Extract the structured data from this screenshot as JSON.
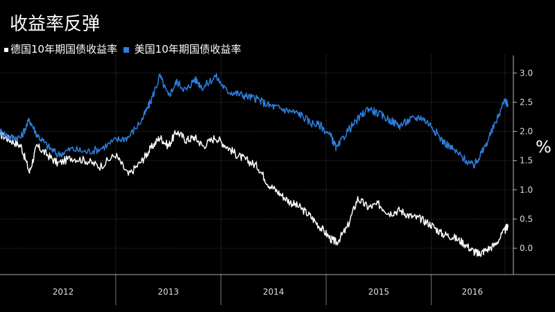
{
  "chart_data": {
    "type": "line",
    "title": "收益率反弹",
    "ylabel": "%",
    "ylim": [
      -0.45,
      3.3
    ],
    "yticks": [
      0.0,
      0.5,
      1.0,
      1.5,
      2.0,
      2.5,
      3.0
    ],
    "ytick_labels": [
      "0.0",
      "0.5",
      "1.0",
      "1.5",
      "2.0",
      "2.5",
      "3.0"
    ],
    "xlim": [
      2011.9,
      2016.78
    ],
    "year_labels": [
      "2012",
      "2013",
      "2014",
      "2015",
      "2016"
    ],
    "year_boundaries": [
      2013.0,
      2014.0,
      2015.0,
      2016.0
    ],
    "grid": true,
    "legend_position": "top-left",
    "series": [
      {
        "name": "德国10年期国债收益率",
        "color": "#ffffff",
        "x": [
          2011.9,
          2012.0,
          2012.1,
          2012.18,
          2012.25,
          2012.35,
          2012.45,
          2012.58,
          2012.72,
          2012.85,
          2013.0,
          2013.12,
          2013.25,
          2013.33,
          2013.42,
          2013.5,
          2013.58,
          2013.67,
          2013.75,
          2013.83,
          2013.95,
          2014.05,
          2014.15,
          2014.25,
          2014.35,
          2014.45,
          2014.55,
          2014.65,
          2014.75,
          2014.85,
          2014.95,
          2015.05,
          2015.1,
          2015.2,
          2015.3,
          2015.4,
          2015.5,
          2015.6,
          2015.7,
          2015.8,
          2015.9,
          2016.0,
          2016.1,
          2016.2,
          2016.3,
          2016.4,
          2016.45,
          2016.5,
          2016.6,
          2016.7,
          2016.73
        ],
        "y": [
          1.95,
          1.85,
          1.75,
          1.3,
          1.75,
          1.6,
          1.45,
          1.55,
          1.5,
          1.4,
          1.6,
          1.25,
          1.5,
          1.7,
          1.9,
          1.75,
          2.0,
          1.85,
          1.9,
          1.75,
          1.9,
          1.75,
          1.6,
          1.5,
          1.4,
          1.1,
          0.95,
          0.8,
          0.7,
          0.55,
          0.35,
          0.15,
          0.1,
          0.35,
          0.85,
          0.7,
          0.75,
          0.6,
          0.65,
          0.55,
          0.5,
          0.4,
          0.25,
          0.2,
          0.1,
          -0.05,
          -0.1,
          -0.05,
          0.05,
          0.3,
          0.4
        ]
      },
      {
        "name": "美国10年期国债收益率",
        "color": "#2e7fe0",
        "x": [
          2011.9,
          2012.0,
          2012.1,
          2012.18,
          2012.25,
          2012.35,
          2012.45,
          2012.58,
          2012.72,
          2012.85,
          2013.0,
          2013.12,
          2013.25,
          2013.33,
          2013.42,
          2013.5,
          2013.58,
          2013.67,
          2013.75,
          2013.83,
          2013.95,
          2014.05,
          2014.15,
          2014.25,
          2014.35,
          2014.45,
          2014.55,
          2014.65,
          2014.75,
          2014.85,
          2014.95,
          2015.05,
          2015.1,
          2015.2,
          2015.3,
          2015.4,
          2015.5,
          2015.6,
          2015.7,
          2015.8,
          2015.9,
          2016.0,
          2016.1,
          2016.2,
          2016.3,
          2016.4,
          2016.45,
          2016.5,
          2016.6,
          2016.7,
          2016.73
        ],
        "y": [
          2.0,
          1.9,
          1.9,
          2.2,
          1.95,
          1.75,
          1.6,
          1.7,
          1.65,
          1.7,
          1.85,
          1.9,
          2.2,
          2.5,
          2.95,
          2.6,
          2.85,
          2.7,
          2.9,
          2.75,
          2.95,
          2.7,
          2.65,
          2.6,
          2.55,
          2.45,
          2.4,
          2.35,
          2.3,
          2.15,
          2.1,
          1.9,
          1.7,
          2.0,
          2.2,
          2.4,
          2.3,
          2.2,
          2.1,
          2.2,
          2.25,
          2.1,
          1.85,
          1.7,
          1.55,
          1.4,
          1.55,
          1.7,
          2.1,
          2.55,
          2.45
        ]
      }
    ]
  }
}
